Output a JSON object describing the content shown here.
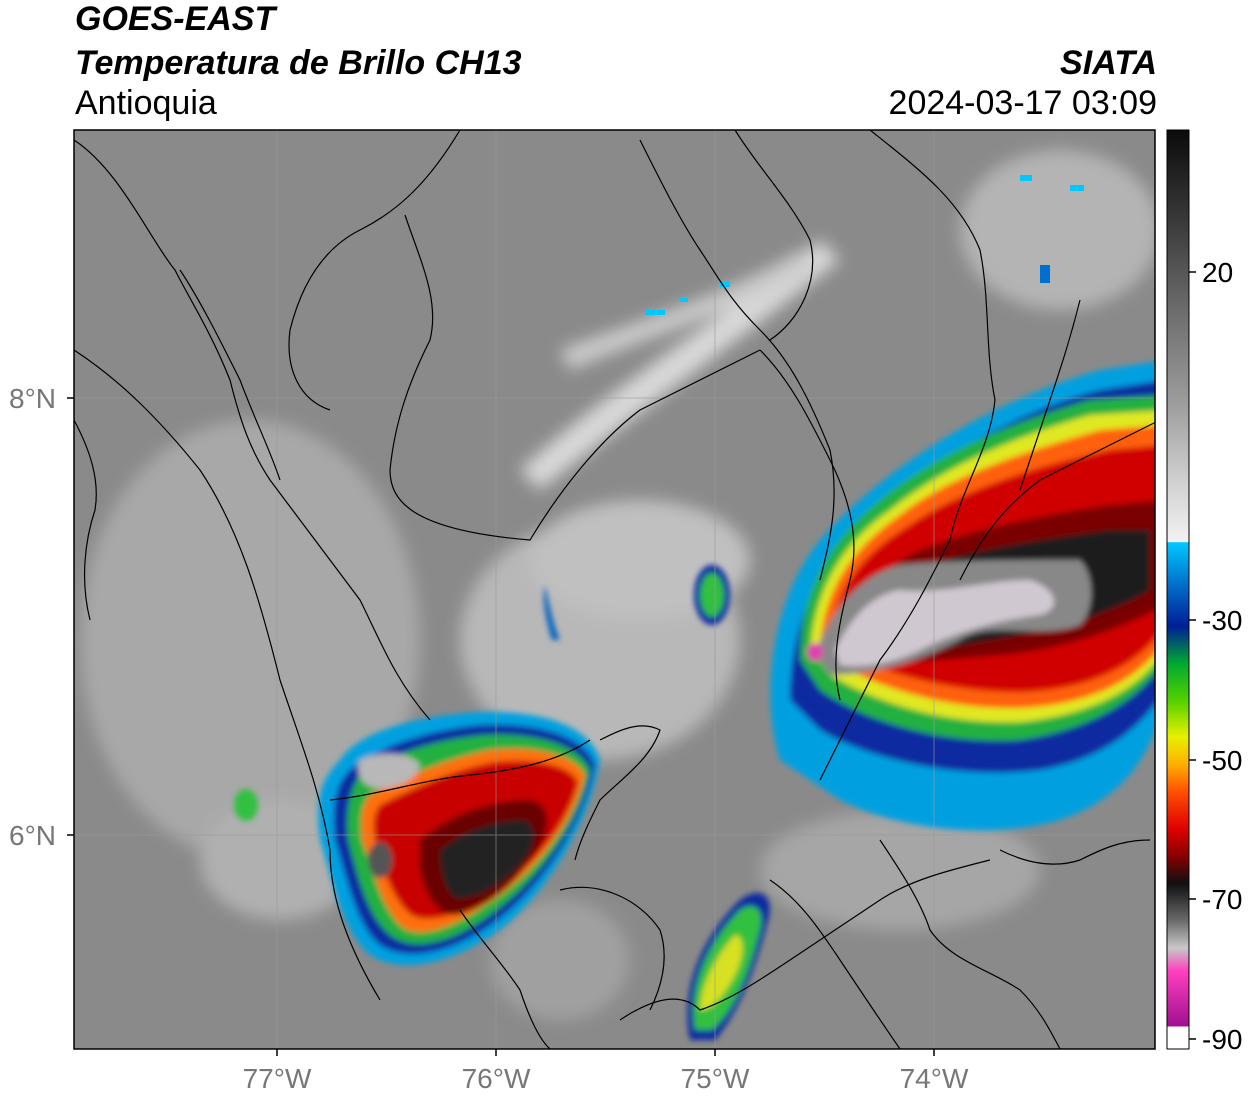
{
  "header": {
    "satellite": "GOES-EAST",
    "product": "Temperatura de Brillo CH13",
    "region": "Antioquia",
    "organization": "SIATA",
    "datetime": "2024-03-17 03:09"
  },
  "axes": {
    "lon_ticks": [
      "77°W",
      "76°W",
      "75°W",
      "74°W"
    ],
    "lat_ticks": [
      "8°N",
      "6°N"
    ]
  },
  "colorbar": {
    "ticks": [
      "20",
      "-30",
      "-50",
      "-70",
      "-90"
    ],
    "palette_top_to_bottom": [
      "#0b0b0b",
      "#3a3a3a",
      "#6e6e6e",
      "#9e9e9e",
      "#cfcfcf",
      "#f2f2f2",
      "#00c8ff",
      "#0078d0",
      "#001e96",
      "#00a832",
      "#50d000",
      "#e8f000",
      "#ffb000",
      "#ff5000",
      "#e00000",
      "#8a0000",
      "#101010",
      "#6a6a6a",
      "#c8c8c8",
      "#ff40c0",
      "#a01090",
      "#ffffff"
    ]
  }
}
